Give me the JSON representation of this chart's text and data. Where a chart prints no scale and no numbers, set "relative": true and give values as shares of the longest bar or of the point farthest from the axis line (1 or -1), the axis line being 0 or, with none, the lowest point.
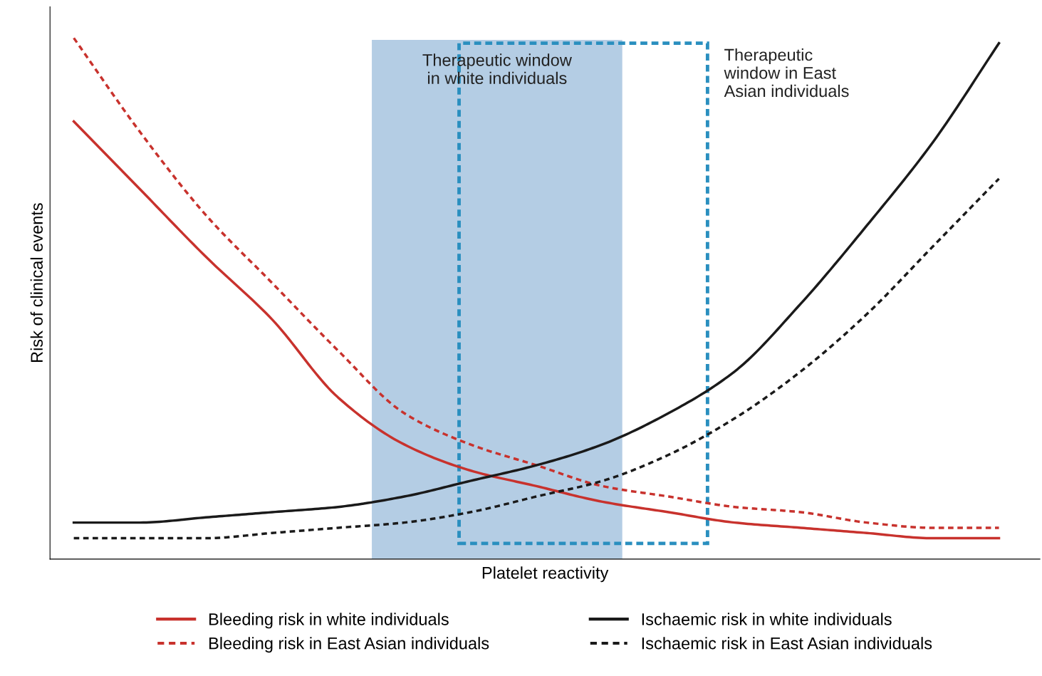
{
  "chart_data": {
    "type": "line",
    "relative": true,
    "xlabel": "Platelet reactivity",
    "ylabel": "Risk of clinical events",
    "categories": [
      null,
      null,
      null,
      null,
      null,
      null,
      null,
      null,
      null,
      null,
      null,
      null,
      null,
      null,
      null
    ],
    "series": [
      {
        "name": "Bleeding risk in white individuals",
        "color": "#c8322d",
        "line_style": "solid",
        "values": [
          0.84,
          0.71,
          0.58,
          0.46,
          0.31,
          0.22,
          0.17,
          0.14,
          0.11,
          0.09,
          0.07,
          0.06,
          0.05,
          0.04,
          0.04
        ]
      },
      {
        "name": "Bleeding risk in East Asian individuals",
        "color": "#c8322d",
        "line_style": "dashed",
        "values": [
          1.0,
          0.82,
          0.66,
          0.53,
          0.4,
          0.28,
          0.22,
          0.18,
          0.14,
          0.12,
          0.1,
          0.09,
          0.07,
          0.06,
          0.06
        ]
      },
      {
        "name": "Ischaemic risk in white individuals",
        "color": "#1a1a1a",
        "line_style": "solid",
        "values": [
          0.07,
          0.07,
          0.08,
          0.09,
          0.1,
          0.12,
          0.15,
          0.18,
          0.22,
          0.28,
          0.36,
          0.49,
          0.64,
          0.8,
          0.99
        ]
      },
      {
        "name": "Ischaemic risk in East Asian individuals",
        "color": "#1a1a1a",
        "line_style": "dashed",
        "values": [
          0.04,
          0.04,
          0.04,
          0.05,
          0.06,
          0.07,
          0.09,
          0.12,
          0.15,
          0.2,
          0.27,
          0.36,
          0.47,
          0.6,
          0.73
        ]
      }
    ],
    "annotations": [
      "Therapeutic window\nin white individuals",
      "Therapeutic\nwindow in East\nAsian individuals"
    ],
    "legend": "bottom",
    "grid": false
  }
}
